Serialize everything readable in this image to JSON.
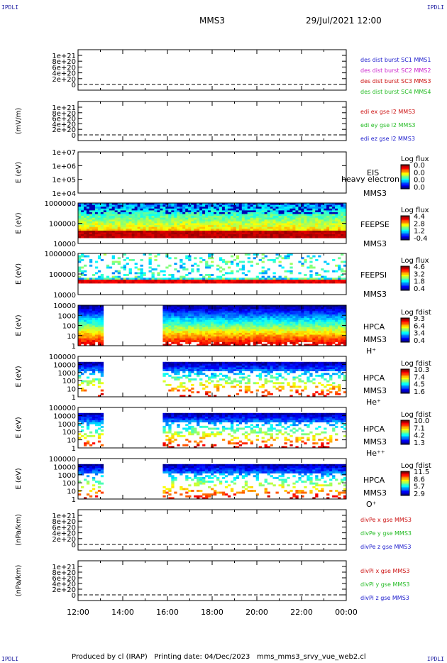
{
  "corner_label": "IPDLI",
  "header": {
    "spacecraft": "MMS3",
    "datetime": "29/Jul/2021 12:00"
  },
  "footer": {
    "text": "Produced by cl (IRAP)   Printing date: 04/Dec/2023   mms_mms3_srvy_vue_web2.cl"
  },
  "time_axis": [
    "12:00",
    "14:00",
    "16:00",
    "18:00",
    "20:00",
    "22:00",
    "00:00"
  ],
  "chart_data": [
    {
      "type": "line",
      "panel": "des_dist",
      "ylabel": "",
      "yticks": [
        "1e+21",
        "8e+20",
        "6e+20",
        "4e+20",
        "2e+20",
        "0"
      ],
      "series": [
        {
          "name": "des dist burst SC1 MMS1",
          "color": "#1a1acc"
        },
        {
          "name": "des dist burst SC2 MMS2",
          "color": "#cc22cc"
        },
        {
          "name": "des dist burst SC3 MMS3",
          "color": "#cc1111"
        },
        {
          "name": "des dist burst SC4 MMS4",
          "color": "#22bb22"
        }
      ]
    },
    {
      "type": "line",
      "panel": "edi",
      "ylabel": "(mV/m)",
      "yticks": [
        "1e+21",
        "8e+20",
        "6e+20",
        "4e+20",
        "2e+20",
        "0"
      ],
      "series": [
        {
          "name": "edi ex gse l2 MMS3",
          "color": "#cc1111"
        },
        {
          "name": "edi ey gse l2 MMS3",
          "color": "#22bb22"
        },
        {
          "name": "edi ez gse l2 MMS3",
          "color": "#1a1acc"
        }
      ]
    },
    {
      "type": "heatmap",
      "panel": "eis",
      "ylabel": "E (eV)",
      "log": true,
      "yticks": [
        "1e+07",
        "1e+06",
        "1e+05",
        "1e+04"
      ],
      "labels": [
        "EIS",
        "heavy electron to",
        "MMS3"
      ],
      "colorbar": {
        "title": "Log flux",
        "ticks": [
          "0.0",
          "0.0",
          "0.0",
          "0.0"
        ]
      }
    },
    {
      "type": "heatmap",
      "panel": "feeps_e",
      "ylabel": "E (eV)",
      "log": true,
      "yticks": [
        "1000000",
        "100000",
        "10000"
      ],
      "labels": [
        "FEEPSE",
        "MMS3"
      ],
      "colorbar": {
        "title": "Log flux",
        "ticks": [
          "4.4",
          "2.8",
          "1.2",
          "-0.4"
        ]
      }
    },
    {
      "type": "heatmap",
      "panel": "feeps_i",
      "ylabel": "E (eV)",
      "log": true,
      "yticks": [
        "1000000",
        "100000",
        "10000"
      ],
      "labels": [
        "FEEPSI",
        "MMS3"
      ],
      "colorbar": {
        "title": "Log flux",
        "ticks": [
          "4.6",
          "3.2",
          "1.8",
          "0.4"
        ]
      }
    },
    {
      "type": "heatmap",
      "panel": "hpca_h",
      "ylabel": "E (eV)",
      "log": true,
      "yticks": [
        "10000",
        "1000",
        "100",
        "10",
        "1"
      ],
      "labels": [
        "HPCA",
        "MMS3",
        "H⁺"
      ],
      "gaps": [
        [
          "13:15",
          "15:40"
        ]
      ],
      "colorbar": {
        "title": "Log fdist",
        "ticks": [
          "9.3",
          "6.4",
          "3.4",
          "0.4"
        ]
      }
    },
    {
      "type": "heatmap",
      "panel": "hpca_he",
      "ylabel": "E (eV)",
      "log": true,
      "yticks": [
        "100000",
        "10000",
        "1000",
        "100",
        "10",
        "1"
      ],
      "labels": [
        "HPCA",
        "MMS3",
        "He⁺"
      ],
      "gaps": [
        [
          "13:15",
          "15:40"
        ]
      ],
      "colorbar": {
        "title": "Log fdist",
        "ticks": [
          "10.3",
          "7.4",
          "4.5",
          "1.6"
        ]
      }
    },
    {
      "type": "heatmap",
      "panel": "hpca_hepp",
      "ylabel": "E (eV)",
      "log": true,
      "yticks": [
        "100000",
        "10000",
        "1000",
        "100",
        "10",
        "1"
      ],
      "labels": [
        "HPCA",
        "MMS3",
        "He⁺⁺"
      ],
      "gaps": [
        [
          "13:15",
          "15:40"
        ]
      ],
      "colorbar": {
        "title": "Log fdist",
        "ticks": [
          "10.0",
          "7.1",
          "4.2",
          "1.3"
        ]
      }
    },
    {
      "type": "heatmap",
      "panel": "hpca_o",
      "ylabel": "E (eV)",
      "log": true,
      "yticks": [
        "100000",
        "10000",
        "1000",
        "100",
        "10",
        "1"
      ],
      "labels": [
        "HPCA",
        "MMS3",
        "O⁺"
      ],
      "gaps": [
        [
          "13:15",
          "15:40"
        ]
      ],
      "colorbar": {
        "title": "Log fdist",
        "ticks": [
          "11.5",
          "8.6",
          "5.7",
          "2.9"
        ]
      }
    },
    {
      "type": "line",
      "panel": "divpe",
      "ylabel": "(nPa/km)",
      "yticks": [
        "1e+21",
        "8e+20",
        "6e+20",
        "4e+20",
        "2e+20",
        "0"
      ],
      "series": [
        {
          "name": "divPe x gse MMS3",
          "color": "#cc1111"
        },
        {
          "name": "divPe y gse MMS3",
          "color": "#22bb22"
        },
        {
          "name": "divPe z gse MMS3",
          "color": "#1a1acc"
        }
      ]
    },
    {
      "type": "line",
      "panel": "divpi",
      "ylabel": "(nPa/km)",
      "yticks": [
        "1e+21",
        "8e+20",
        "6e+20",
        "4e+20",
        "2e+20",
        "0"
      ],
      "series": [
        {
          "name": "divPi x gse MMS3",
          "color": "#cc1111"
        },
        {
          "name": "divPi y gse MMS3",
          "color": "#22bb22"
        },
        {
          "name": "divPi z gse MMS3",
          "color": "#1a1acc"
        }
      ]
    }
  ]
}
